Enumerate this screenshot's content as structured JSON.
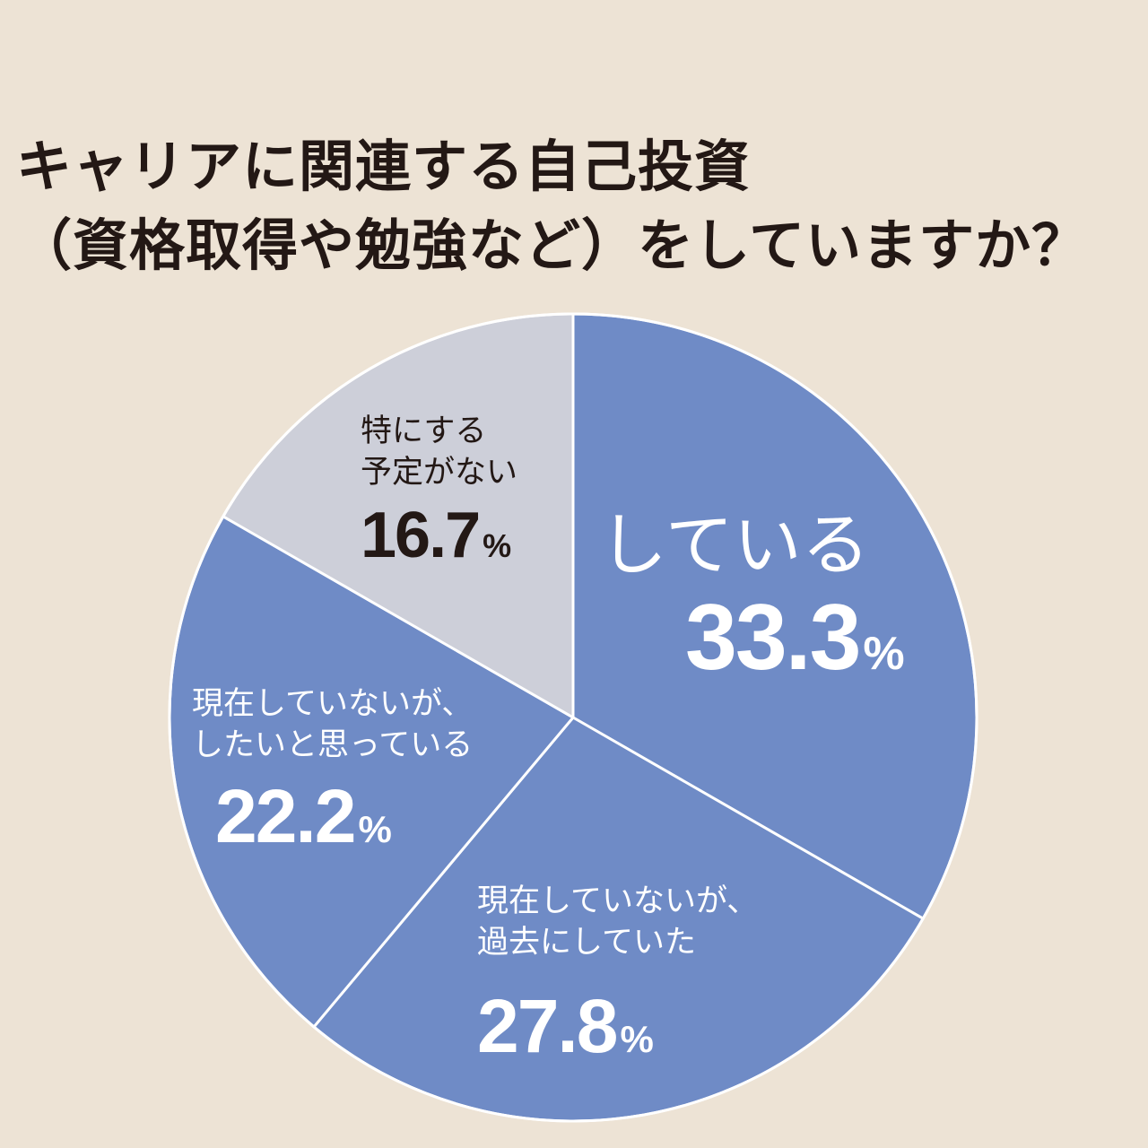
{
  "title": {
    "line1": "キャリアに関連する自己投資",
    "line2": "（資格取得や勉強など）をしていますか？"
  },
  "colors": {
    "background": "#ede3d5",
    "blue_segment": "#6f8bc6",
    "gray_segment": "#cdcfd9",
    "divider": "#ffffff",
    "text_dark": "#231815"
  },
  "segments": [
    {
      "label_line1": "している",
      "label_line2": "",
      "value": "33.3",
      "unit": "%"
    },
    {
      "label_line1": "現在していないが、",
      "label_line2": "過去にしていた",
      "value": "27.8",
      "unit": "%"
    },
    {
      "label_line1": "現在していないが、",
      "label_line2": "したいと思っている",
      "value": "22.2",
      "unit": "%"
    },
    {
      "label_line1": "特にする",
      "label_line2": "予定がない",
      "value": "16.7",
      "unit": "%"
    }
  ],
  "chart_data": {
    "type": "pie",
    "title": "キャリアに関連する自己投資（資格取得や勉強など）をしていますか？",
    "categories": [
      "している",
      "現在していないが、過去にしていた",
      "現在していないが、したいと思っている",
      "特にする予定がない"
    ],
    "values": [
      33.3,
      27.8,
      22.2,
      16.7
    ],
    "unit": "%",
    "start_angle": "12 o'clock",
    "direction": "clockwise",
    "colors": [
      "#6f8bc6",
      "#6f8bc6",
      "#6f8bc6",
      "#cdcfd9"
    ],
    "legend": "none (labels inside slices)"
  }
}
